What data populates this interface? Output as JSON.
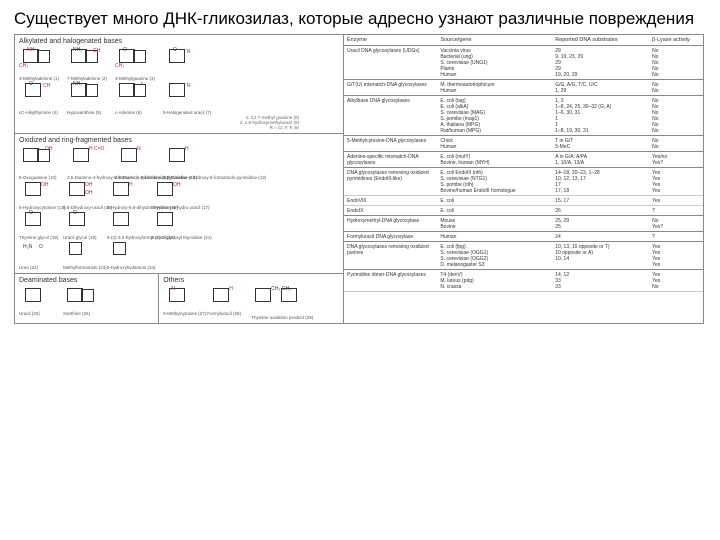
{
  "title": "Существует много ДНК-гликозилаз, которые адресно узнают различные повреждения",
  "left": {
    "sec1": {
      "title": "Alkylated and halogenated bases",
      "row1": [
        "3-Methyladenine (1)",
        "7-Methyladenine (2)",
        "3-Methylguanine (3)",
        ""
      ],
      "row2": [
        "εC-Alkylthymine (4)",
        "Hypoxanthine (5)",
        "ε-Adenine (6)",
        "5-Halogenated uracil (7)"
      ],
      "note": "1. C2 7-methyl guanine (8)\n2. ε-5-hydroxymethyluracil (9)\nR = CI, F, F, Br"
    },
    "sec2": {
      "title": "Oxidized and ring-fragmented bases",
      "row1": [
        "8-Oxoguanine (10)",
        "2,6-Diamino-4-hydroxy-5-formamido pyrimidine (11)",
        "4,6-Diamino-5-formamido pyrimidine (12)",
        "2,2-Diamino-4-hydroxy-5-formamido pyrimidine (13)"
      ],
      "row2": [
        "5-Hydroxycytosine (14)",
        "5,6-Dihydroxy-uracil (15)",
        "5-Hydroxy-5,6-dihydro thymine (16)",
        "5-Hydroxy-6-hydro uracil (17)"
      ],
      "row3": [
        "Thymine glycol (18)",
        "Uracil glycol (19)",
        "5-(2)-3,3-hydroxyformyl uracil (20)",
        "5-(2)-3-glycosyl thymidine (21)"
      ],
      "row4": [
        "Urea (22)",
        "Methylformamido (23)",
        "5-hydroxyhydantoin (24)",
        ""
      ]
    },
    "sec3": {
      "l": "Deaminated bases",
      "r": "Others",
      "left_items": [
        "Uracil (25)",
        "Xanthine (26)"
      ],
      "right_items": [
        "5-Methylcytosine (27)",
        "Formyluracil (28)",
        "Thymine oxidation product (29)"
      ]
    }
  },
  "table": {
    "headers": [
      "Enzyme",
      "Source/gene",
      "Reported DNA substrates",
      "β-Lyase activity"
    ],
    "rows": [
      {
        "e": "Uracil DNA glycosylases (UDGs)",
        "s": "Vaccinia virus\nBacterial (ung)\nS. cerevisiae (UNG1)\nPlants\nHuman",
        "d": "29\n9, 19, 23, 29\n29\n29\n19, 20, 29",
        "a": "No\nNo\nNo\nNo\nNo",
        "end": true
      },
      {
        "e": "G/T(U) mismatch-DNA glycosylases",
        "s": "M. thermoautotrophicum\nHuman",
        "d": "G/G, A/G, T/C, U/C\n1, 29",
        "a": "No\nNo",
        "end": true
      },
      {
        "e": "Alkylbase DNA glycosylases",
        "s": "E. coli (tag)\nE. coli (alkA)\nS. cerevisiae (MAG)\nS. pombe (mag1)\nA. thaliana (MPG)\nRat/human (MPG)",
        "d": "1, 3\n1–8, 24, 25, 30–32 (G, A)\n1–6, 30, 31\n1\n1\n1–8, 19, 30, 31",
        "a": "No\nNo\nNo\nNo\nNo\nNo",
        "end": true
      },
      {
        "e": "5-Methylcytosine-DNA glycosylases",
        "s": "Chick\nHuman",
        "d": "T in G/T\n5-MeC",
        "a": "No\nNo",
        "end": true
      },
      {
        "e": "Adenine-specific mismatch-DNA glycosylases",
        "s": "E. coli (mutY)\nBovine, human (MYH)",
        "d": "A in G/A; A/PA\n1, 10/A, 13/A",
        "a": "Yes/no\nYes?",
        "end": true
      },
      {
        "e": "DNA glycosylases removing oxidized pyrimidines (EndoIII-like)",
        "s": "E. coli EndoIII (nth)\nS. cerevisiae (NTG1)\nS. pombe (nth)\nBovine/human EndoIII homologue",
        "d": "14–18, 20–23, 1–28\n10, 12, 13, 17\n17\n17, 18",
        "a": "Yes\nYes\nYes\nYes",
        "end": false
      },
      {
        "e": "EndoVIII",
        "s": "E. coli",
        "d": "15, 17",
        "a": "Yes",
        "end": false
      },
      {
        "e": "EndoIX",
        "s": "E. coli",
        "d": "26",
        "a": "?",
        "end": true
      },
      {
        "e": "Hydroxymethyl-DNA glycosylase",
        "s": "Mouse\nBovine",
        "d": "25, 29\n25",
        "a": "No\nYes?",
        "end": true
      },
      {
        "e": "Formyluracil DNA glycosylase",
        "s": "Human",
        "d": "24",
        "a": "?",
        "end": true
      },
      {
        "e": "DNA glycosylases removing oxidized purines",
        "s": "E. coli (fpg)\nS. cerevisiae (OGG1)\nS. cerevisiae (OGG2)\nD. melanogaster S3",
        "d": "10, 13, 10 opposite or T)\n10 opposite or A)\n10, 14",
        "a": "Yes\nYes\nYes\nYes",
        "end": true
      },
      {
        "e": "Pyrimidine dimer-DNA glycosylases",
        "s": "T4 (denV)\nM. luteus (pdg)\nN. crassa",
        "d": "14, 12\n33\n33",
        "a": "Yes\nYes\nNo",
        "end": false
      }
    ]
  }
}
